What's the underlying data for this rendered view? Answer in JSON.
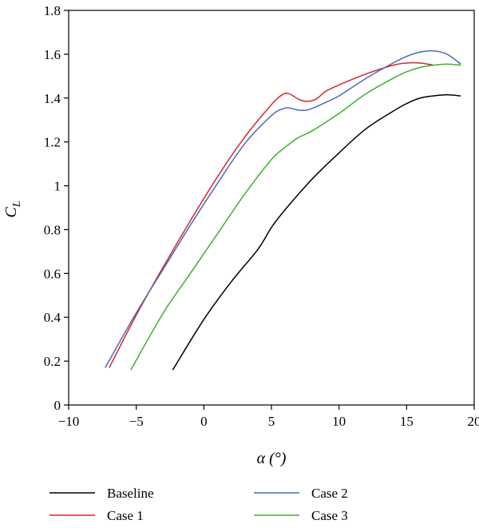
{
  "chart_data": {
    "type": "line",
    "title": "",
    "xlabel": "α (°)",
    "ylabel_main": "C",
    "ylabel_sub": "L",
    "xlim": [
      -10,
      20
    ],
    "ylim": [
      0,
      1.8
    ],
    "xticks": [
      -10,
      -5,
      0,
      5,
      10,
      15,
      20
    ],
    "yticks": [
      0,
      0.2,
      0.4,
      0.6,
      0.8,
      1,
      1.2,
      1.4,
      1.6,
      1.8
    ],
    "xtick_labels": [
      "−10",
      "−5",
      "0",
      "5",
      "10",
      "15",
      "20"
    ],
    "ytick_labels": [
      "0",
      "0.2",
      "0.4",
      "0.6",
      "0.8",
      "1",
      "1.2",
      "1.4",
      "1.6",
      "1.8"
    ],
    "grid": false,
    "legend_position": "bottom",
    "series": [
      {
        "name": "Baseline",
        "color": "#000000",
        "x": [
          -2.3,
          0,
          2,
          4,
          5,
          6,
          8,
          10,
          12,
          14,
          15,
          16,
          17,
          18,
          19
        ],
        "y": [
          0.16,
          0.39,
          0.56,
          0.71,
          0.81,
          0.89,
          1.03,
          1.15,
          1.26,
          1.34,
          1.375,
          1.4,
          1.41,
          1.415,
          1.41
        ]
      },
      {
        "name": "Case 1",
        "color": "#d62728",
        "x": [
          -7,
          -5,
          -3,
          -1,
          1,
          3,
          5,
          5.8,
          6.3,
          7,
          7.6,
          8.3,
          9,
          10,
          12,
          14,
          15,
          16,
          17
        ],
        "y": [
          0.17,
          0.41,
          0.63,
          0.84,
          1.04,
          1.22,
          1.37,
          1.415,
          1.42,
          1.395,
          1.385,
          1.395,
          1.43,
          1.46,
          1.51,
          1.55,
          1.56,
          1.56,
          1.55
        ]
      },
      {
        "name": "Case 2",
        "color": "#4a6bb5",
        "x": [
          -7.3,
          -5,
          -3,
          -1,
          1,
          3,
          5,
          5.8,
          6.3,
          7,
          7.6,
          8.3,
          9,
          10,
          12,
          14,
          15,
          16,
          17,
          18,
          19
        ],
        "y": [
          0.17,
          0.42,
          0.62,
          0.82,
          1.01,
          1.19,
          1.32,
          1.35,
          1.355,
          1.345,
          1.345,
          1.36,
          1.38,
          1.41,
          1.49,
          1.56,
          1.59,
          1.61,
          1.615,
          1.6,
          1.555
        ]
      },
      {
        "name": "Case 3",
        "color": "#3cb32a",
        "x": [
          -5.4,
          -3,
          -1,
          1,
          3,
          5,
          6,
          7,
          8,
          10,
          12,
          14,
          15,
          16,
          17,
          18,
          19
        ],
        "y": [
          0.16,
          0.42,
          0.6,
          0.78,
          0.96,
          1.12,
          1.175,
          1.22,
          1.25,
          1.33,
          1.42,
          1.49,
          1.52,
          1.54,
          1.55,
          1.555,
          1.55
        ]
      }
    ]
  }
}
